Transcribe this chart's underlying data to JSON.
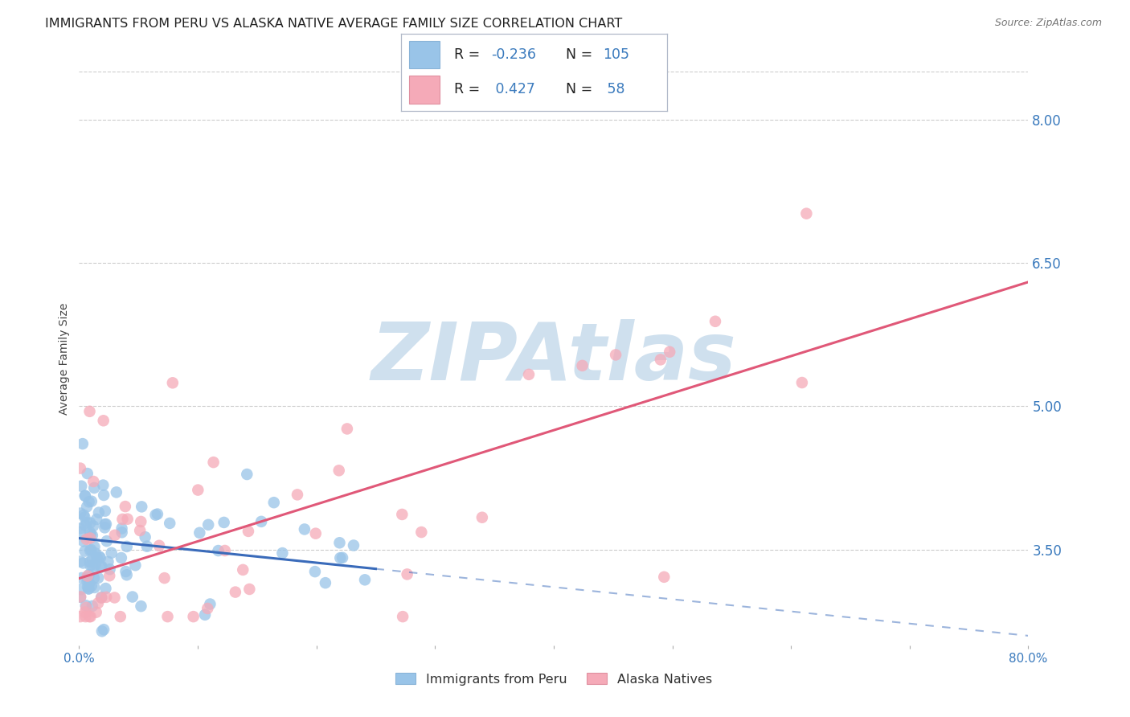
{
  "title": "IMMIGRANTS FROM PERU VS ALASKA NATIVE AVERAGE FAMILY SIZE CORRELATION CHART",
  "source": "Source: ZipAtlas.com",
  "ylabel": "Average Family Size",
  "xlim": [
    0.0,
    80.0
  ],
  "ylim": [
    2.5,
    8.5
  ],
  "yticks_right": [
    8.0,
    6.5,
    5.0,
    3.5
  ],
  "xtick_positions": [
    0.0,
    10.0,
    20.0,
    30.0,
    40.0,
    50.0,
    60.0,
    70.0,
    80.0
  ],
  "xtick_labels": [
    "0.0%",
    "",
    "",
    "",
    "",
    "",
    "",
    "",
    "80.0%"
  ],
  "blue_R": -0.236,
  "blue_N": 105,
  "pink_R": 0.427,
  "pink_N": 58,
  "blue_label": "Immigrants from Peru",
  "pink_label": "Alaska Natives",
  "blue_color": "#99c4e8",
  "pink_color": "#f5aab8",
  "blue_line_color": "#3a6bba",
  "pink_line_color": "#e05878",
  "background_color": "#ffffff",
  "grid_color": "#cccccc",
  "title_fontsize": 11.5,
  "axis_label_fontsize": 10,
  "tick_fontsize": 11,
  "source_fontsize": 9,
  "watermark_color": "#cfe0ee",
  "watermark_fontsize": 72,
  "blue_line_x0": 0.0,
  "blue_line_y0": 3.62,
  "blue_line_x1": 25.0,
  "blue_line_y1": 3.3,
  "blue_dash_x0": 25.0,
  "blue_dash_y0": 3.3,
  "blue_dash_x1": 80.0,
  "blue_dash_y1": 2.6,
  "pink_line_x0": 0.0,
  "pink_line_y0": 3.2,
  "pink_line_x1": 80.0,
  "pink_line_y1": 6.3
}
